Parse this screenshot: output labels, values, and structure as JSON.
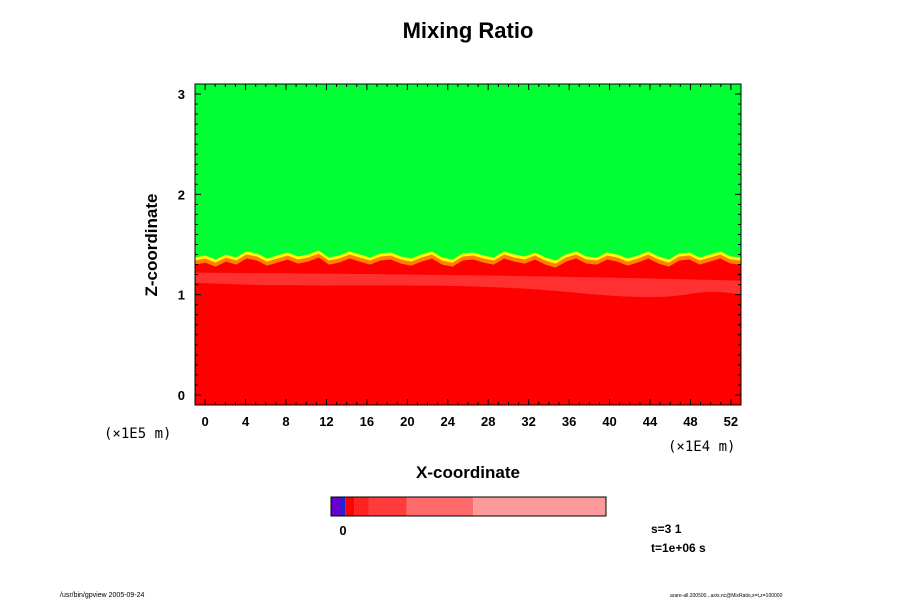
{
  "chart_data": {
    "type": "heatmap",
    "title": "Mixing Ratio",
    "xlabel": "X-coordinate",
    "ylabel": "Z-coordinate",
    "x_ticks": [
      "0",
      "4",
      "8",
      "12",
      "16",
      "20",
      "24",
      "28",
      "32",
      "36",
      "40",
      "44",
      "48",
      "52"
    ],
    "y_ticks": [
      "0",
      "1",
      "2",
      "3"
    ],
    "xlim": [
      -1,
      53
    ],
    "ylim": [
      -0.1,
      3.1
    ],
    "x_unit": "(×1E4 m)",
    "y_unit": "(×1E5 m)",
    "grid": false,
    "regions": [
      {
        "name": "upper",
        "z_from": 1.35,
        "z_to": 3.1,
        "color": "#00ff33"
      },
      {
        "name": "lower",
        "z_from": -0.1,
        "z_to": 1.3,
        "color": "#ff0000"
      }
    ],
    "interface_z": [
      1.3,
      1.32,
      1.28,
      1.33,
      1.3,
      1.36,
      1.34,
      1.29,
      1.32,
      1.35,
      1.31,
      1.33,
      1.37,
      1.3,
      1.32,
      1.36,
      1.33,
      1.3,
      1.34,
      1.35,
      1.31,
      1.29,
      1.33,
      1.36,
      1.3,
      1.28,
      1.34,
      1.35,
      1.32,
      1.3,
      1.36,
      1.33,
      1.31,
      1.35,
      1.3,
      1.27,
      1.33,
      1.36,
      1.31,
      1.3,
      1.35,
      1.33,
      1.29,
      1.32,
      1.36,
      1.31,
      1.28,
      1.34,
      1.35,
      1.3,
      1.33,
      1.36,
      1.31,
      1.3
    ],
    "colorbar": {
      "label": "0",
      "segments": [
        {
          "color": "#6600cc",
          "weight": 1
        },
        {
          "color": "#2222dd",
          "weight": 0.5
        },
        {
          "color": "#ff0000",
          "weight": 1
        },
        {
          "color": "#ff2222",
          "weight": 1.5
        },
        {
          "color": "#ff3b3b",
          "weight": 4
        },
        {
          "color": "#ff6b6b",
          "weight": 7
        },
        {
          "color": "#ff9a9a",
          "weight": 14
        }
      ]
    }
  },
  "info": {
    "s_line": "s=3 1",
    "t_line": "t=1e+06 s"
  },
  "footer": {
    "left": "/usr/bin/gpview 2005-09-24",
    "right": "arare-all.200500...axis.nc@MixRatio,x=t,z=100000"
  },
  "colors": {
    "green": "#00ff33",
    "red": "#ff0000",
    "yellow": "#ffff00",
    "orange": "#ff8000"
  }
}
